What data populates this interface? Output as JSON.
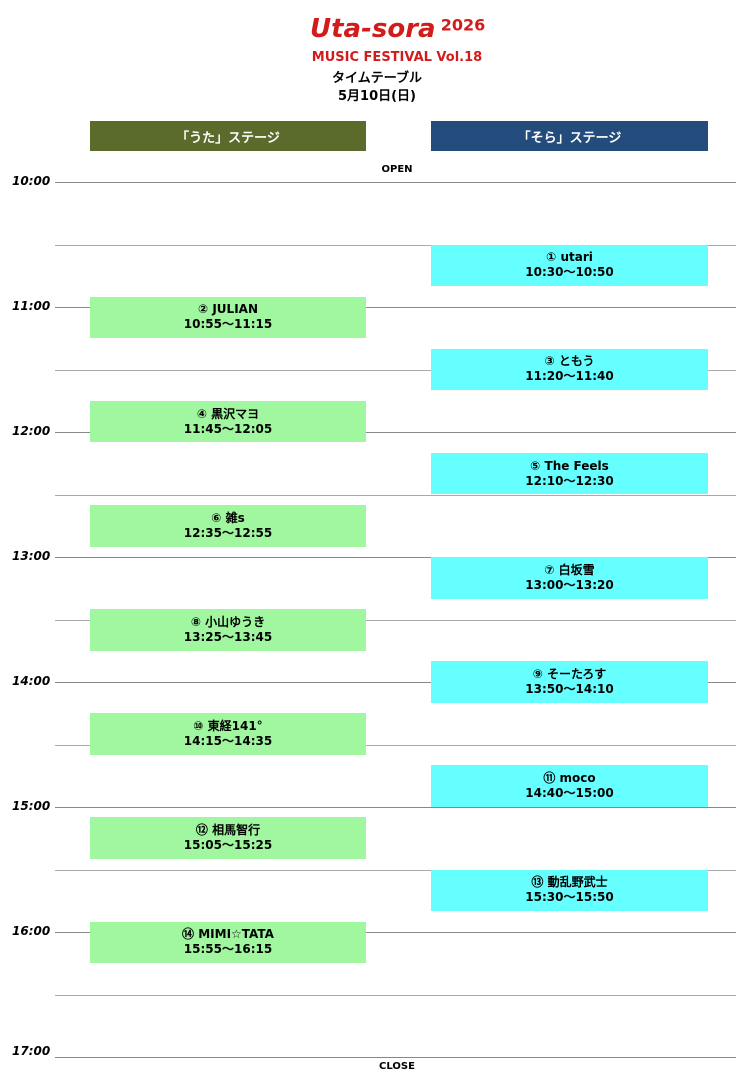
{
  "header": {
    "title": "Uta-sora",
    "year": "2026",
    "subtitle": "MUSIC FESTIVAL Vol.18",
    "heading": "タイムテーブル",
    "date": "5月10日(日)"
  },
  "open": "OPEN",
  "close": "CLOSE",
  "times": [
    "10:00",
    "11:00",
    "12:00",
    "13:00",
    "14:00",
    "15:00",
    "16:00",
    "17:00"
  ],
  "stages": [
    {
      "name": "「うた」ステージ",
      "slots": [
        {
          "act": "② JULIAN",
          "time": "10:55～11:15"
        },
        {
          "act": "④ 黒沢マヨ",
          "time": "11:45～12:05"
        },
        {
          "act": "⑥ 雑s",
          "time": "12:35～12:55"
        },
        {
          "act": "⑧ 小山ゆうき",
          "time": "13:25～13:45"
        },
        {
          "act": "⑩ 東経141°",
          "time": "14:15～14:35"
        },
        {
          "act": "⑫ 相馬智行",
          "time": "15:05～15:25"
        },
        {
          "act": "⑭ MIMI☆TATA",
          "time": "15:55～16:15"
        }
      ]
    },
    {
      "name": "「そら」ステージ",
      "slots": [
        {
          "act": "① utari",
          "time": "10:30～10:50"
        },
        {
          "act": "③ ともう",
          "time": "11:20～11:40"
        },
        {
          "act": "⑤ The Feels",
          "time": "12:10～12:30"
        },
        {
          "act": "⑦ 白坂雪",
          "time": "13:00～13:20"
        },
        {
          "act": "⑨ そーたろす",
          "time": "13:50～14:10"
        },
        {
          "act": "⑪ moco",
          "time": "14:40～15:00"
        },
        {
          "act": "⑬ 動乱野武士",
          "time": "15:30～15:50"
        }
      ]
    }
  ]
}
